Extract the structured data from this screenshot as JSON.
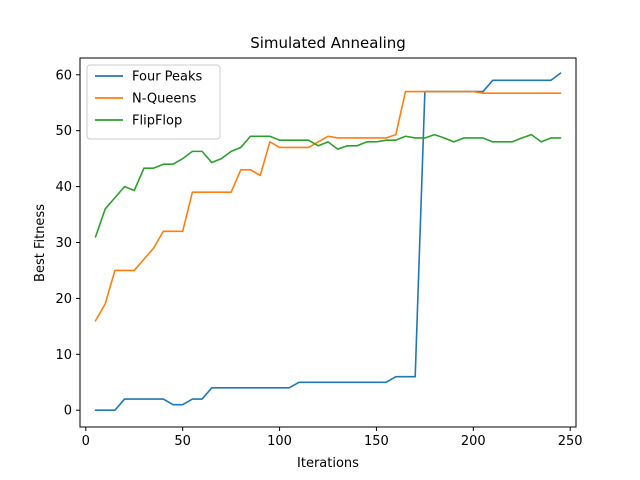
{
  "chart_data": {
    "type": "line",
    "title": "Simulated Annealing",
    "xlabel": "Iterations",
    "ylabel": "Best Fitness",
    "xlim": [
      -3,
      253
    ],
    "ylim": [
      -3,
      63
    ],
    "xticks": [
      0,
      50,
      100,
      150,
      200,
      250
    ],
    "yticks": [
      0,
      10,
      20,
      30,
      40,
      50,
      60
    ],
    "grid": false,
    "legend_position": "top-left",
    "x": [
      5,
      10,
      15,
      20,
      25,
      30,
      35,
      40,
      45,
      50,
      55,
      60,
      65,
      70,
      75,
      80,
      85,
      90,
      95,
      100,
      105,
      110,
      115,
      120,
      125,
      130,
      135,
      140,
      145,
      150,
      155,
      160,
      165,
      170,
      175,
      180,
      185,
      190,
      195,
      200,
      205,
      210,
      215,
      220,
      225,
      230,
      235,
      240,
      245
    ],
    "series": [
      {
        "name": "Four Peaks",
        "color": "#1f77b4",
        "values": [
          0,
          0,
          0,
          2,
          2,
          2,
          2,
          2,
          1,
          1,
          2,
          2,
          4,
          4,
          4,
          4,
          4,
          4,
          4,
          4,
          4,
          5,
          5,
          5,
          5,
          5,
          5,
          5,
          5,
          5,
          5,
          6,
          6,
          6,
          57,
          57,
          57,
          57,
          57,
          57,
          57,
          59,
          59,
          59,
          59,
          59,
          59,
          59,
          60.3
        ]
      },
      {
        "name": "N-Queens",
        "color": "#ff7f0e",
        "values": [
          16,
          19,
          25,
          25,
          25,
          27,
          29,
          32,
          32,
          32,
          39,
          39,
          39,
          39,
          39,
          43,
          43,
          42,
          48,
          47,
          47,
          47,
          47,
          48,
          49,
          48.7,
          48.7,
          48.7,
          48.7,
          48.7,
          48.7,
          49.3,
          57,
          57,
          57,
          57,
          57,
          57,
          57,
          57,
          56.7,
          56.7,
          56.7,
          56.7,
          56.7,
          56.7,
          56.7,
          56.7,
          56.7
        ]
      },
      {
        "name": "FlipFlop",
        "color": "#2ca02c",
        "values": [
          31,
          36,
          38,
          40,
          39.3,
          43.3,
          43.3,
          44,
          44,
          45,
          46.3,
          46.3,
          44.3,
          45,
          46.3,
          47,
          49,
          49,
          49,
          48.3,
          48.3,
          48.3,
          48.3,
          47.3,
          48,
          46.7,
          47.3,
          47.3,
          48,
          48,
          48.3,
          48.3,
          49,
          48.7,
          48.7,
          49.3,
          48.7,
          48,
          48.7,
          48.7,
          48.7,
          48,
          48,
          48,
          48.7,
          49.3,
          48,
          48.7,
          48.7
        ]
      }
    ]
  }
}
